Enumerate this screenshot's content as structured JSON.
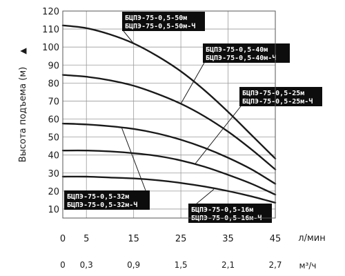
{
  "chart_data": {
    "type": "line",
    "ylabel": "Высота подъема (м)",
    "ylabel_arrow": "▲",
    "xlabel_primary": "л/мин",
    "xlabel_secondary": "м³/ч",
    "x_ticks": [
      "0",
      "5",
      "15",
      "25",
      "35",
      "45"
    ],
    "x2_ticks": [
      "0",
      "0,3",
      "0,9",
      "1,5",
      "2,1",
      "2,7"
    ],
    "y_ticks": [
      "10",
      "20",
      "30",
      "40",
      "50",
      "60",
      "70",
      "80",
      "90",
      "100",
      "110",
      "120"
    ],
    "xlim": [
      0,
      45
    ],
    "ylim": [
      5,
      120
    ],
    "grid": true,
    "series": [
      {
        "name": "БЦПЭ-75-0,5-50м / БЦПЭ-75-0,5-50м-Ч",
        "x": [
          0,
          5,
          10,
          15,
          20,
          25,
          30,
          35,
          40,
          45
        ],
        "y": [
          112,
          110.5,
          107,
          102,
          95,
          86.5,
          76,
          64,
          51,
          38
        ]
      },
      {
        "name": "БЦПЭ-75-0,5-40м / БЦПЭ-75-0,5-40м-Ч",
        "x": [
          0,
          5,
          10,
          15,
          20,
          25,
          30,
          35,
          40,
          45
        ],
        "y": [
          84.5,
          83.5,
          81.5,
          78.5,
          74,
          68.5,
          61.5,
          53,
          43,
          32
        ]
      },
      {
        "name": "БЦПЭ-75-0,5-32м / БЦПЭ-75-0,5-32м-Ч",
        "x": [
          0,
          5,
          10,
          15,
          20,
          25,
          30,
          35,
          40,
          45
        ],
        "y": [
          57.5,
          57,
          56,
          54.5,
          52,
          48.5,
          44,
          38.5,
          32,
          24
        ]
      },
      {
        "name": "БЦПЭ-75-0,5-25м / БЦПЭ-75-0,5-25м-Ч",
        "x": [
          0,
          5,
          10,
          15,
          20,
          25,
          30,
          35,
          40,
          45
        ],
        "y": [
          42.5,
          42.5,
          42,
          41,
          39.5,
          37,
          33.5,
          29,
          24,
          18
        ]
      },
      {
        "name": "БЦПЭ-75-0,5-16м / БЦПЭ-75-0,5-16м-Ч",
        "x": [
          0,
          5,
          10,
          15,
          20,
          25,
          30,
          35,
          40,
          45
        ],
        "y": [
          28,
          28,
          27.5,
          27,
          26,
          24.5,
          22.5,
          20,
          17,
          13.5
        ]
      }
    ],
    "annotations": [
      {
        "lines": [
          "БЦПЭ-75-0,5-50м",
          "БЦПЭ-75-0,5-50м-Ч"
        ],
        "target": {
          "x": 15,
          "y": 102
        }
      },
      {
        "lines": [
          "БЦПЭ-75-0,5-40м",
          "БЦПЭ-75-0,5-40м-Ч"
        ],
        "target": {
          "x": 25,
          "y": 68.5
        }
      },
      {
        "lines": [
          "БЦПЭ-75-0,5-25м",
          "БЦПЭ-75-0,5-25м-Ч"
        ],
        "target": {
          "x": 28,
          "y": 35
        }
      },
      {
        "lines": [
          "БЦПЭ-75-0,5-32м",
          "БЦПЭ-75-0,5-32м-Ч"
        ],
        "target": {
          "x": 12.5,
          "y": 55
        }
      },
      {
        "lines": [
          "БЦПЭ-75-0,5-16м",
          "БЦПЭ-75-0,5-16м-Ч"
        ],
        "target": {
          "x": 32,
          "y": 21
        }
      }
    ]
  }
}
